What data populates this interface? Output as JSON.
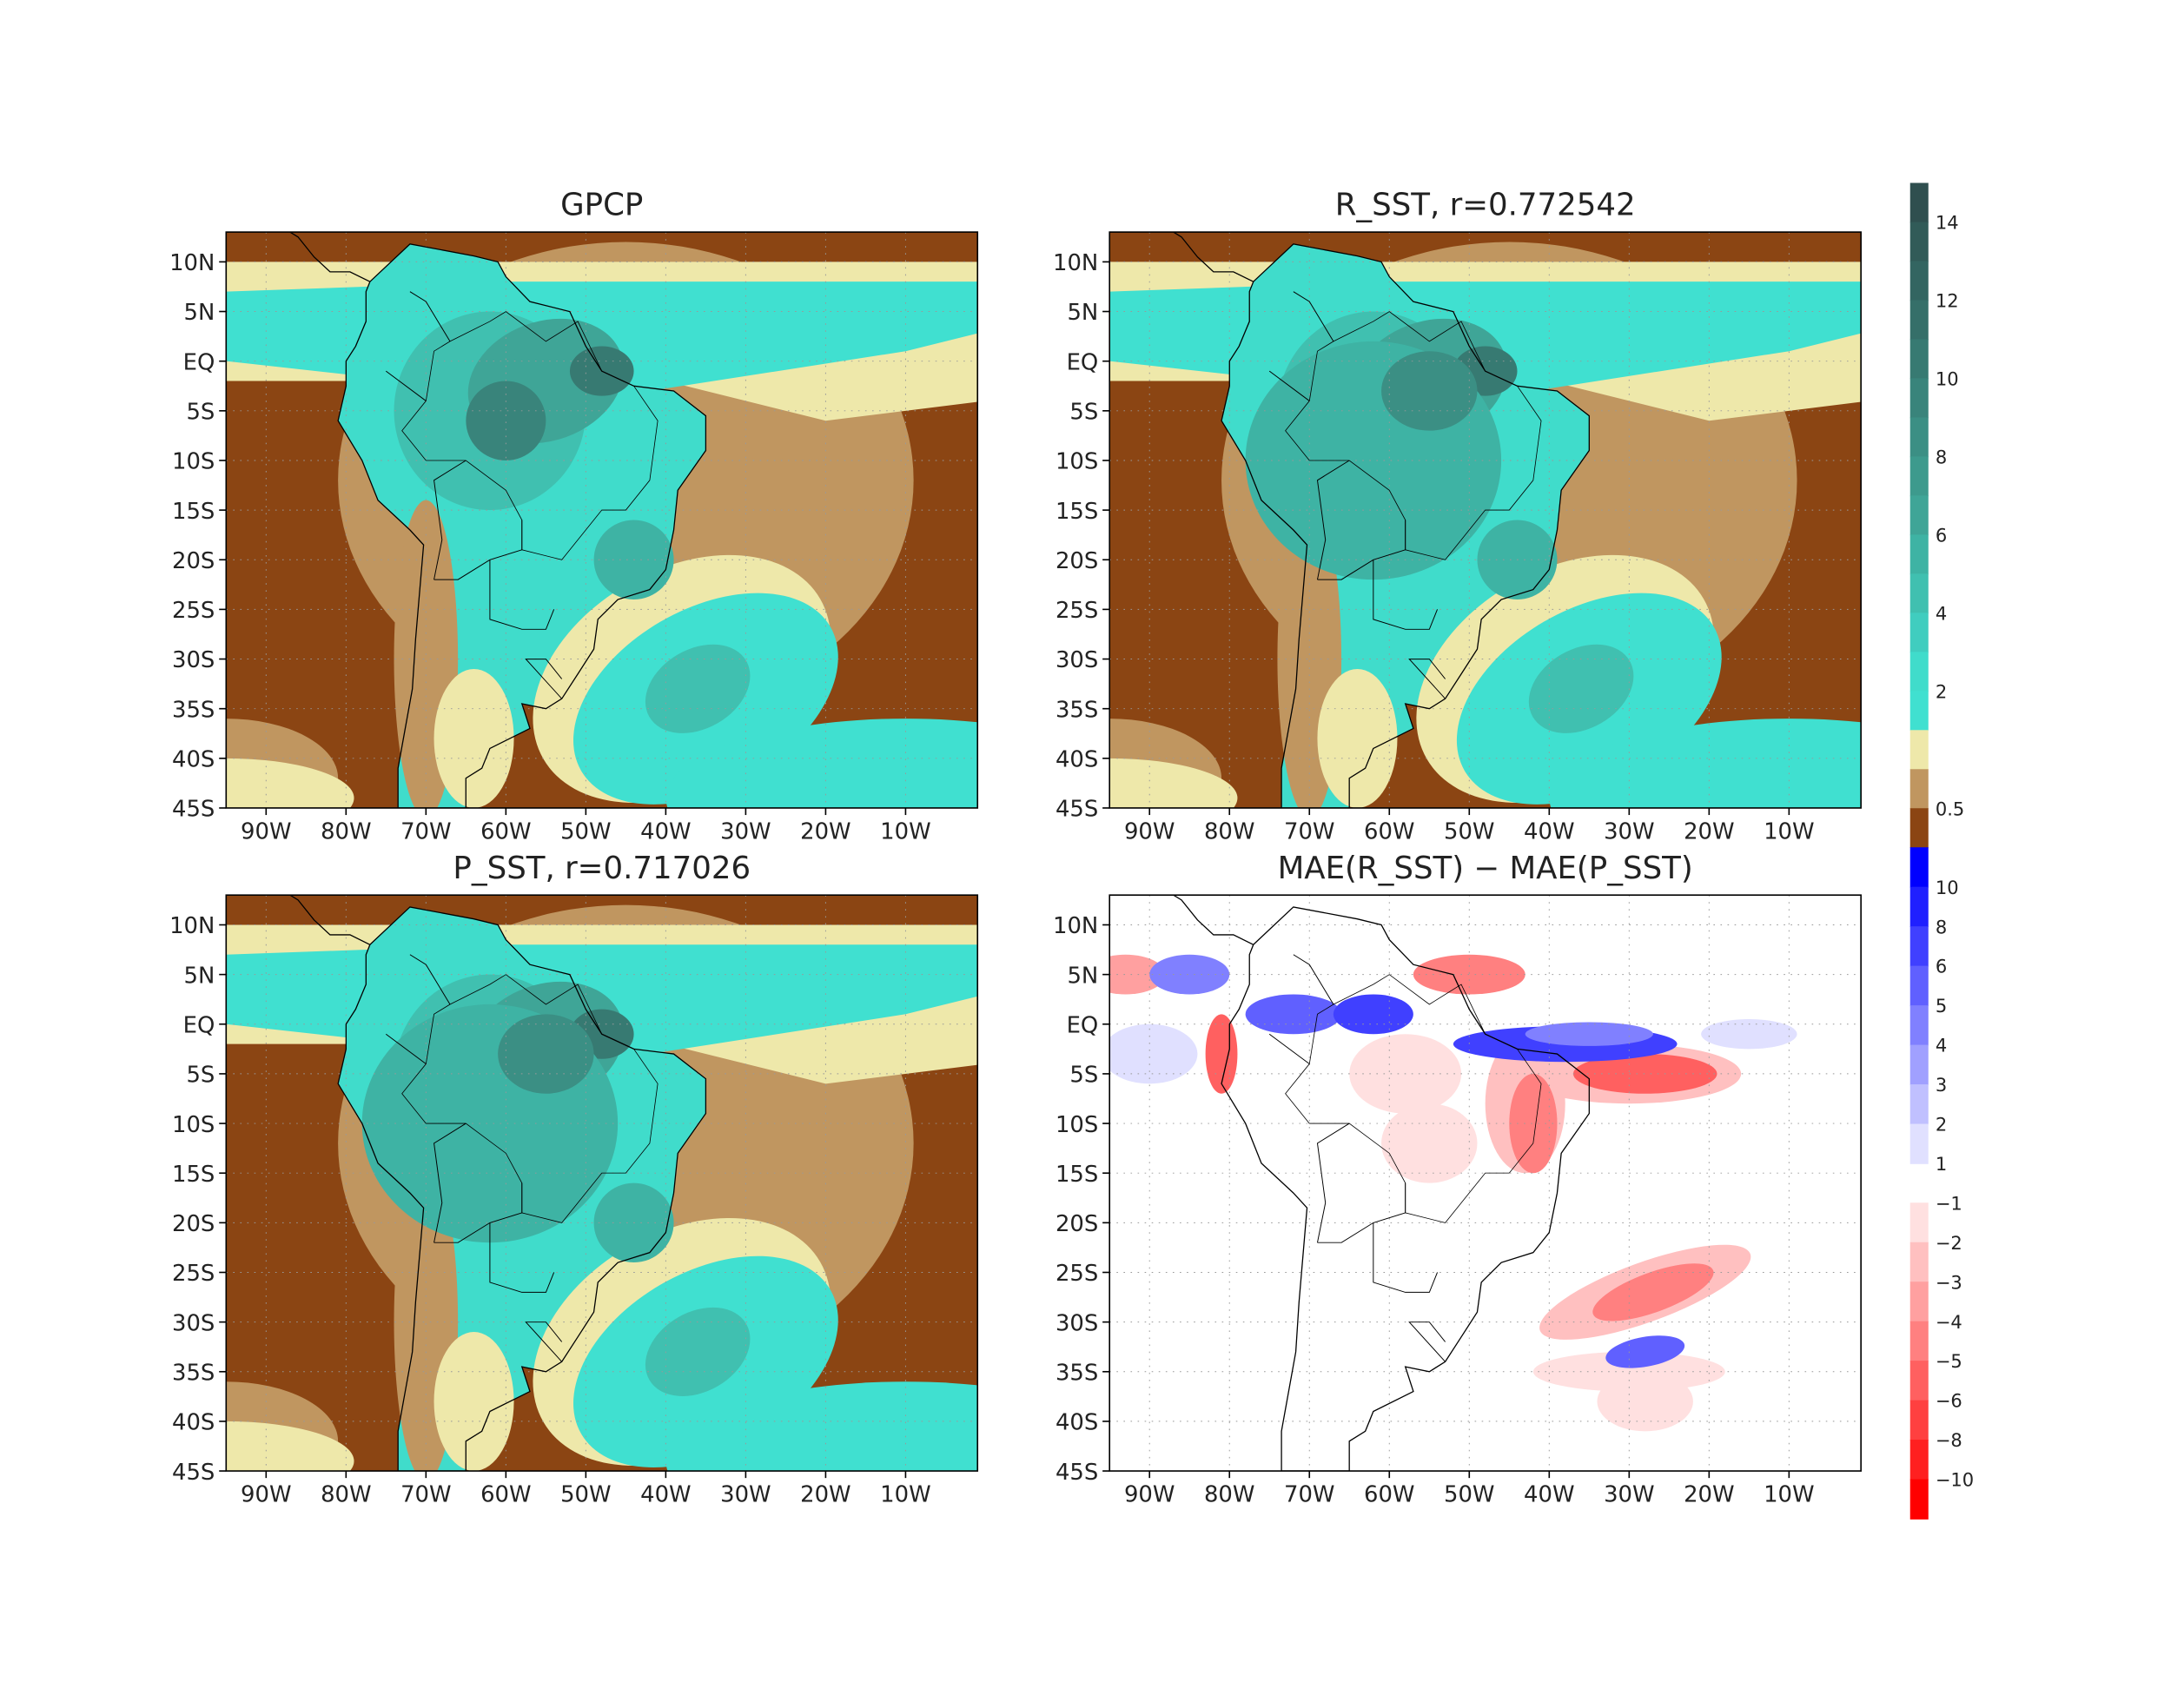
{
  "chart_data": {
    "type": "heatmap",
    "panels": [
      {
        "id": "gpcp",
        "title": "GPCP",
        "kind": "precip"
      },
      {
        "id": "rsst",
        "title": "R_SST, r=0.772542",
        "kind": "precip"
      },
      {
        "id": "psst",
        "title": "P_SST, r=0.717026",
        "kind": "precip"
      },
      {
        "id": "diff",
        "title": "MAE(R_SST) − MAE(P_SST)",
        "kind": "diff"
      }
    ],
    "x_ticks": [
      "90W",
      "80W",
      "70W",
      "60W",
      "50W",
      "40W",
      "30W",
      "20W",
      "10W"
    ],
    "x_tick_values": [
      -90,
      -80,
      -70,
      -60,
      -50,
      -40,
      -30,
      -20,
      -10
    ],
    "y_ticks": [
      "10N",
      "5N",
      "EQ",
      "5S",
      "10S",
      "15S",
      "20S",
      "25S",
      "30S",
      "35S",
      "40S",
      "45S"
    ],
    "y_tick_values": [
      10,
      5,
      0,
      -5,
      -10,
      -15,
      -20,
      -25,
      -30,
      -35,
      -40,
      -45
    ],
    "xlim": [
      -95,
      -1
    ],
    "ylim": [
      -45,
      13
    ],
    "grid": true,
    "colorbar_precip": {
      "colors": [
        "#2F4F4F",
        "#315B58",
        "#336561",
        "#356F69",
        "#377A72",
        "#39847B",
        "#3B8F84",
        "#3D9A8D",
        "#3FA597",
        "#3EB3A4",
        "#40C0B0",
        "#40CDBF",
        "#40DCCB",
        "#40E0D0",
        "#EEE8AA",
        "#C09660",
        "#8B4513"
      ],
      "labels": [
        "14",
        "12",
        "10",
        "8",
        "6",
        "4",
        "2",
        "0.5"
      ]
    },
    "colorbar_diff": {
      "blue_colors": [
        "#0000FF",
        "#2020FF",
        "#4040FF",
        "#6060FF",
        "#8080FF",
        "#A0A0FF",
        "#C0C0FF",
        "#E0E0FF"
      ],
      "blue_labels": [
        "10",
        "8",
        "6",
        "5",
        "4",
        "3",
        "2",
        "1"
      ],
      "red_colors": [
        "#FFE0E0",
        "#FFC0C0",
        "#FFA0A0",
        "#FF8080",
        "#FF6060",
        "#FF4040",
        "#FF2020",
        "#FF0000"
      ],
      "red_labels": [
        "−1",
        "−2",
        "−3",
        "−4",
        "−5",
        "−6",
        "−8",
        "−10"
      ]
    }
  }
}
